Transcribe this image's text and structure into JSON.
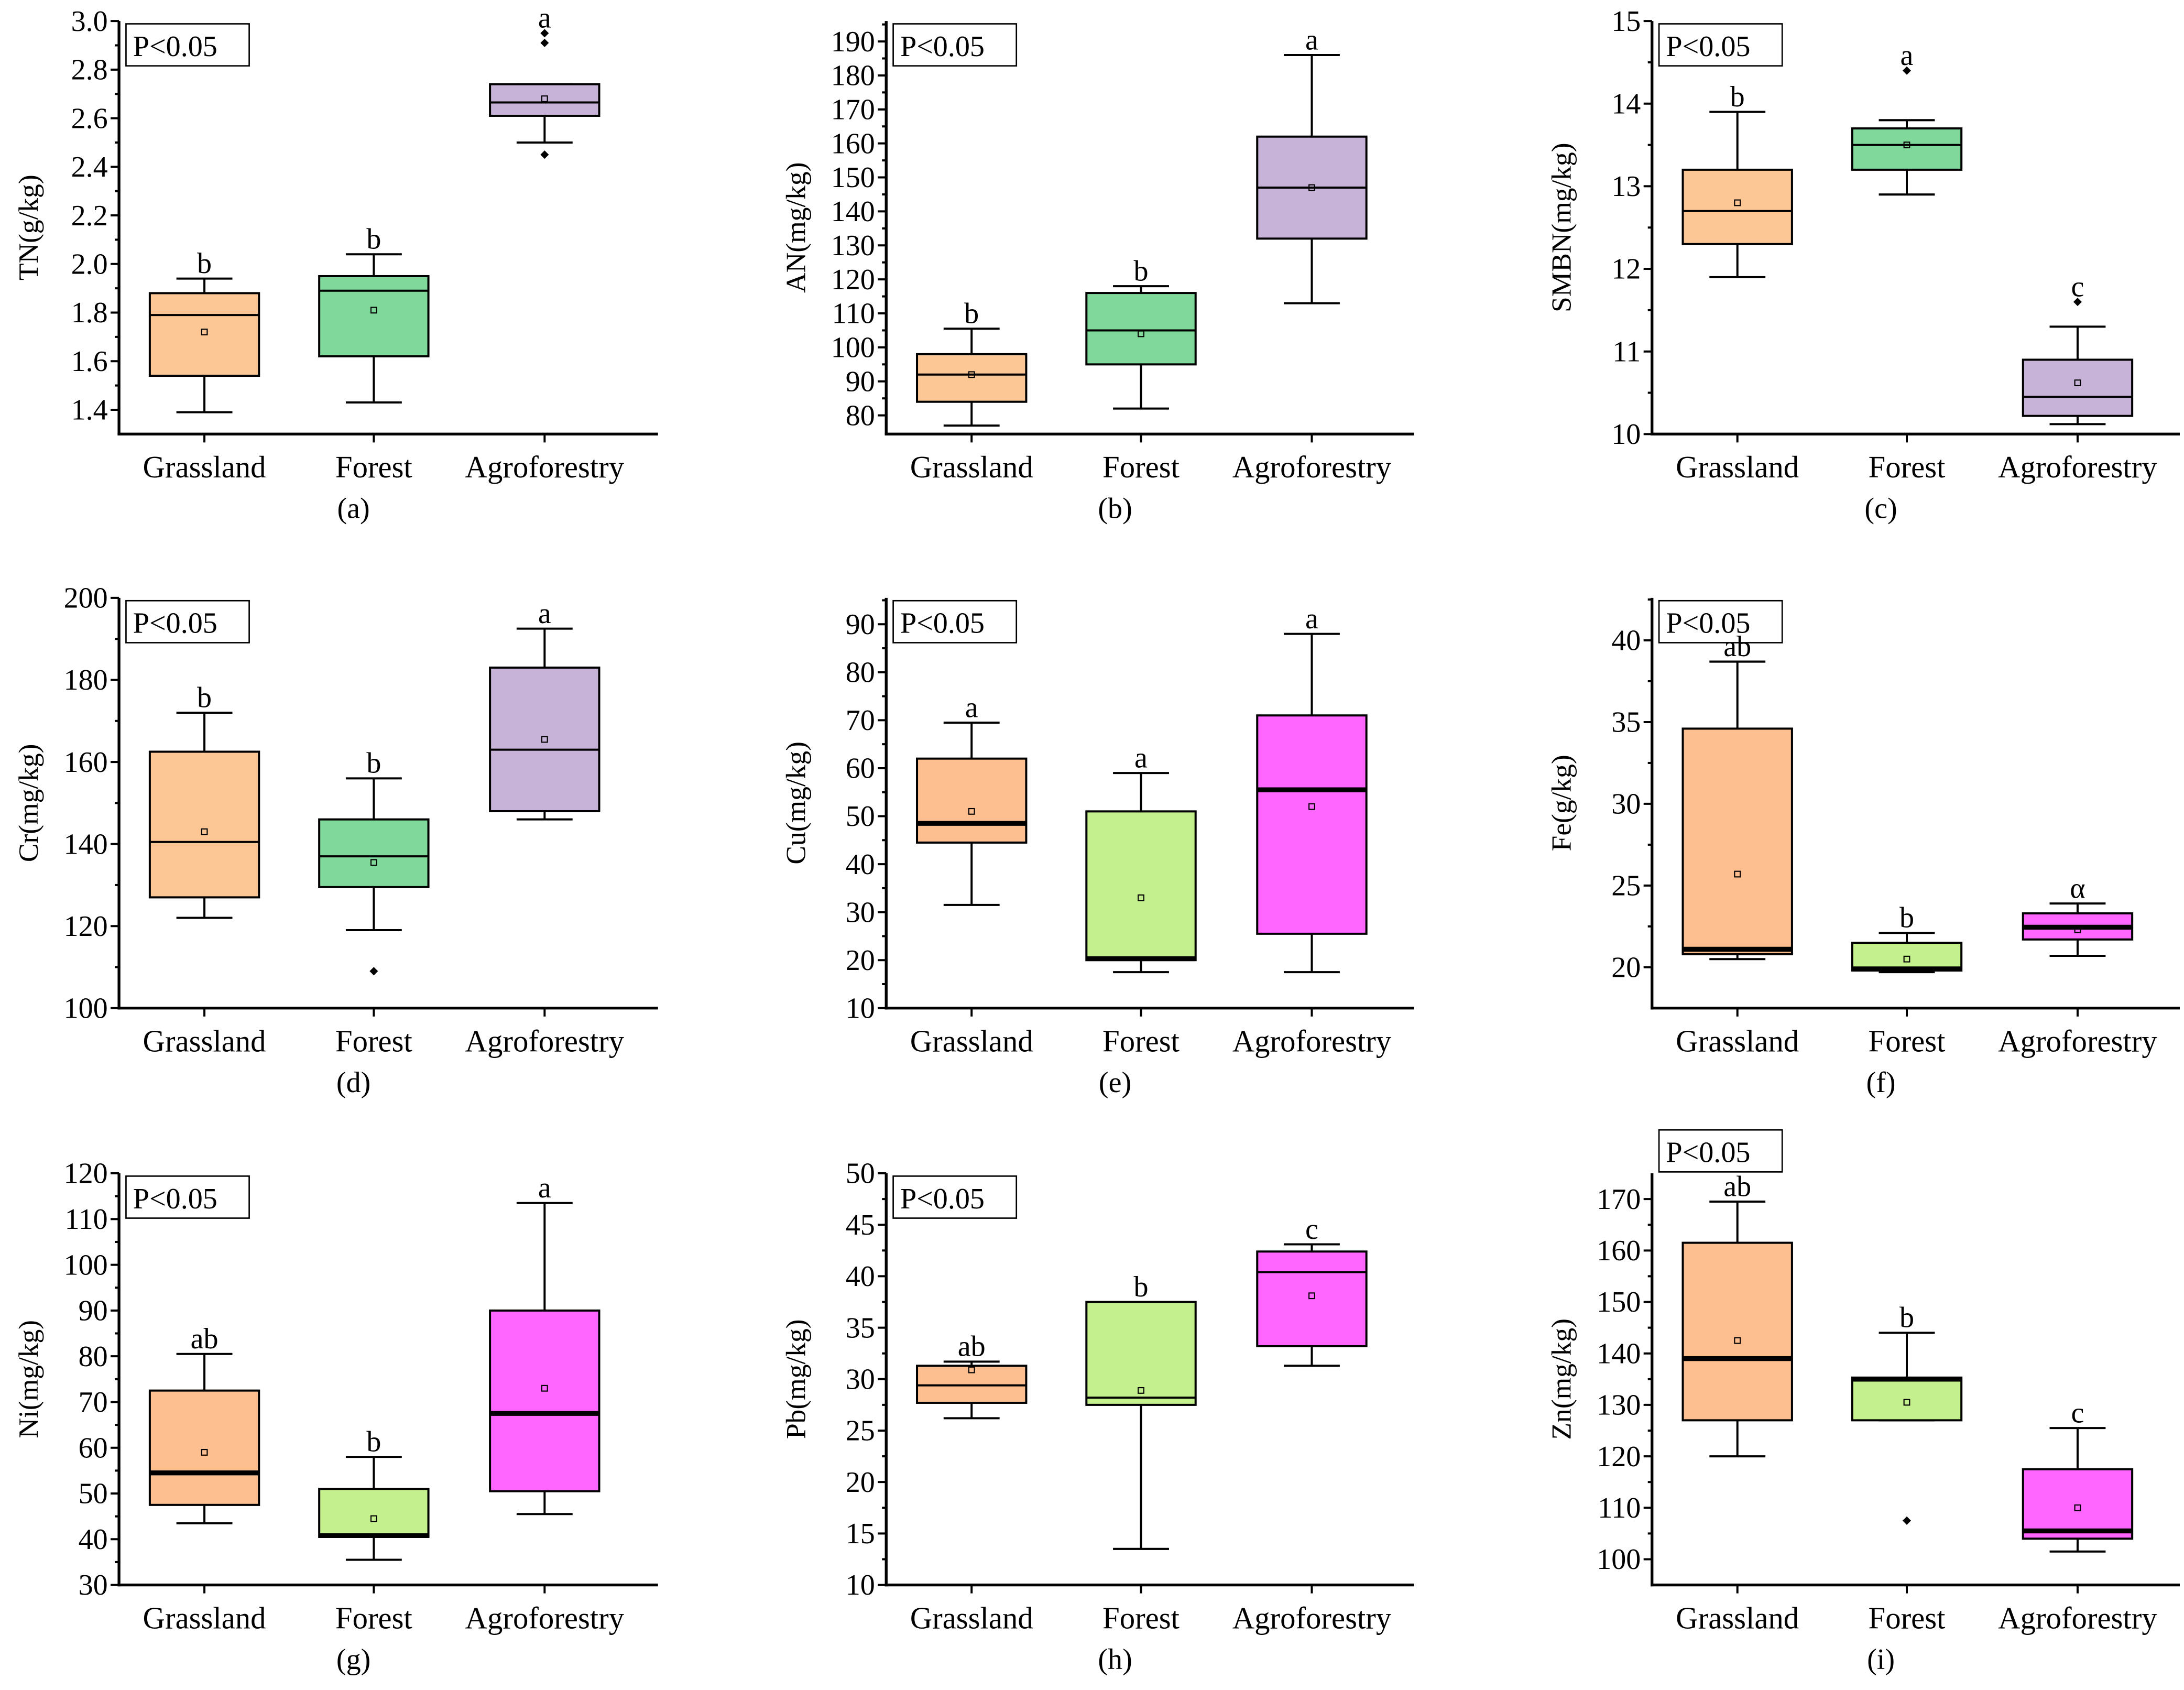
{
  "chart_data": [
    {
      "type": "box",
      "caption": "(a)",
      "ylabel": "TN(g/kg)",
      "p_label": "P<0.05",
      "ylim": [
        1.3,
        3.0
      ],
      "yticks": [
        "1.4",
        "1.6",
        "1.8",
        "2.0",
        "2.2",
        "2.4",
        "2.6",
        "2.8",
        "3.0"
      ],
      "categories": [
        "Grassland",
        "Forest",
        "Agroforestry"
      ],
      "boxes": [
        {
          "min": 1.39,
          "q1": 1.54,
          "median": 1.79,
          "q3": 1.88,
          "max": 1.94,
          "mean": 1.72,
          "outliers": [],
          "letter": "b",
          "color": "#fdc795"
        },
        {
          "min": 1.43,
          "q1": 1.62,
          "median": 1.89,
          "q3": 1.95,
          "max": 2.04,
          "mean": 1.81,
          "outliers": [],
          "letter": "b",
          "color": "#80d99a"
        },
        {
          "min": 2.5,
          "q1": 2.61,
          "median": 2.665,
          "q3": 2.74,
          "max": 2.74,
          "mean": 2.68,
          "outliers": [
            2.45,
            2.91,
            2.95
          ],
          "letter": "a",
          "color": "#c8b3d8"
        }
      ]
    },
    {
      "type": "box",
      "caption": "(b)",
      "ylabel": "AN(mg/kg)",
      "p_label": "P<0.05",
      "ylim": [
        74.5,
        196
      ],
      "yticks": [
        "80",
        "90",
        "100",
        "110",
        "120",
        "130",
        "140",
        "150",
        "160",
        "170",
        "180",
        "190"
      ],
      "categories": [
        "Grassland",
        "Forest",
        "Agroforestry"
      ],
      "boxes": [
        {
          "min": 77,
          "q1": 84,
          "median": 92,
          "q3": 98,
          "max": 105.5,
          "mean": 92,
          "outliers": [],
          "letter": "b",
          "color": "#fdc795"
        },
        {
          "min": 82,
          "q1": 95,
          "median": 105,
          "q3": 116,
          "max": 118,
          "mean": 104,
          "outliers": [],
          "letter": "b",
          "color": "#80d99a"
        },
        {
          "min": 113,
          "q1": 132,
          "median": 147,
          "q3": 162,
          "max": 186,
          "mean": 147,
          "outliers": [],
          "letter": "a",
          "color": "#c8b3d8"
        }
      ]
    },
    {
      "type": "box",
      "caption": "(c)",
      "ylabel": "SMBN(mg/kg)",
      "p_label": "P<0.05",
      "ylim": [
        10,
        15
      ],
      "yticks": [
        "10",
        "11",
        "12",
        "13",
        "14",
        "15"
      ],
      "categories": [
        "Grassland",
        "Forest",
        "Agroforestry"
      ],
      "boxes": [
        {
          "min": 11.9,
          "q1": 12.3,
          "median": 12.7,
          "q3": 13.2,
          "max": 13.9,
          "mean": 12.8,
          "outliers": [],
          "letter": "b",
          "color": "#fdc795"
        },
        {
          "min": 12.9,
          "q1": 13.2,
          "median": 13.5,
          "q3": 13.7,
          "max": 13.8,
          "mean": 13.5,
          "outliers": [
            14.4
          ],
          "letter": "a",
          "color": "#80d99a"
        },
        {
          "min": 10.12,
          "q1": 10.22,
          "median": 10.45,
          "q3": 10.9,
          "max": 11.3,
          "mean": 10.62,
          "outliers": [
            11.6
          ],
          "letter": "c",
          "color": "#c8b3d8"
        }
      ]
    },
    {
      "type": "box",
      "caption": "(d)",
      "ylabel": "Cr(mg/kg)",
      "p_label": "P<0.05",
      "ylim": [
        100,
        200
      ],
      "yticks": [
        "100",
        "120",
        "140",
        "160",
        "180",
        "200"
      ],
      "categories": [
        "Grassland",
        "Forest",
        "Agroforestry"
      ],
      "boxes": [
        {
          "min": 122,
          "q1": 127,
          "median": 140.5,
          "q3": 162.5,
          "max": 172,
          "mean": 143,
          "outliers": [],
          "letter": "b",
          "color": "#fdc795"
        },
        {
          "min": 119,
          "q1": 129.5,
          "median": 137,
          "q3": 146,
          "max": 156,
          "mean": 135.5,
          "outliers": [
            109
          ],
          "letter": "b",
          "color": "#80d99a"
        },
        {
          "min": 146,
          "q1": 148,
          "median": 163,
          "q3": 183,
          "max": 192.5,
          "mean": 165.5,
          "outliers": [],
          "letter": "a",
          "color": "#c8b3d8"
        }
      ]
    },
    {
      "type": "box",
      "caption": "(e)",
      "ylabel": "Cu(mg/kg)",
      "p_label": "P<0.05",
      "ylim": [
        10,
        95.5
      ],
      "yticks": [
        "10",
        "20",
        "30",
        "40",
        "50",
        "60",
        "70",
        "80",
        "90"
      ],
      "thick_median": true,
      "categories": [
        "Grassland",
        "Forest",
        "Agroforestry"
      ],
      "boxes": [
        {
          "min": 31.5,
          "q1": 44.5,
          "median": 48.5,
          "q3": 62,
          "max": 69.5,
          "mean": 51,
          "outliers": [],
          "letter": "a",
          "color": "#fdbf8f"
        },
        {
          "min": 17.5,
          "q1": 20,
          "median": 20.3,
          "q3": 51,
          "max": 59,
          "mean": 33,
          "outliers": [],
          "letter": "a",
          "color": "#c4f08e"
        },
        {
          "min": 17.5,
          "q1": 25.5,
          "median": 55.5,
          "q3": 71,
          "max": 88,
          "mean": 52,
          "outliers": [],
          "letter": "a",
          "color": "#ff66ff"
        }
      ]
    },
    {
      "type": "box",
      "caption": "(f)",
      "ylabel": "Fe(g/kg)",
      "p_label": "P<0.05",
      "ylim": [
        17.5,
        42.6
      ],
      "yticks": [
        "20",
        "25",
        "30",
        "35",
        "40"
      ],
      "thick_median": true,
      "categories": [
        "Grassland",
        "Forest",
        "Agroforestry"
      ],
      "boxes": [
        {
          "min": 20.5,
          "q1": 20.8,
          "median": 21.1,
          "q3": 34.6,
          "max": 38.7,
          "mean": 25.7,
          "outliers": [],
          "letter": "ab",
          "color": "#fdbf8f"
        },
        {
          "min": 19.7,
          "q1": 19.8,
          "median": 19.9,
          "q3": 21.5,
          "max": 22.1,
          "mean": 20.5,
          "outliers": [],
          "letter": "b",
          "color": "#c4f08e"
        },
        {
          "min": 20.7,
          "q1": 21.7,
          "median": 22.45,
          "q3": 23.3,
          "max": 23.9,
          "mean": 22.3,
          "outliers": [],
          "letter": "α",
          "color": "#ff66ff"
        }
      ]
    },
    {
      "type": "box",
      "caption": "(g)",
      "ylabel": "Ni(mg/kg)",
      "p_label": "P<0.05",
      "ylim": [
        30,
        120
      ],
      "yticks": [
        "30",
        "40",
        "50",
        "60",
        "70",
        "80",
        "90",
        "100",
        "110",
        "120"
      ],
      "thick_median": true,
      "categories": [
        "Grassland",
        "Forest",
        "Agroforestry"
      ],
      "boxes": [
        {
          "min": 43.5,
          "q1": 47.5,
          "median": 54.5,
          "q3": 72.5,
          "max": 80.5,
          "mean": 59,
          "outliers": [],
          "letter": "ab",
          "color": "#fdbf8f"
        },
        {
          "min": 35.5,
          "q1": 40.5,
          "median": 40.8,
          "q3": 51,
          "max": 58,
          "mean": 44.5,
          "outliers": [],
          "letter": "b",
          "color": "#c4f08e"
        },
        {
          "min": 45.5,
          "q1": 50.5,
          "median": 67.5,
          "q3": 90,
          "max": 113.5,
          "mean": 73,
          "outliers": [],
          "letter": "a",
          "color": "#ff66ff"
        }
      ]
    },
    {
      "type": "box",
      "caption": "(h)",
      "ylabel": "Pb(mg/kg)",
      "p_label": "P<0.05",
      "ylim": [
        10,
        50
      ],
      "yticks": [
        "10",
        "15",
        "20",
        "25",
        "30",
        "35",
        "40",
        "45",
        "50"
      ],
      "categories": [
        "Grassland",
        "Forest",
        "Agroforestry"
      ],
      "boxes": [
        {
          "min": 26.2,
          "q1": 27.7,
          "median": 29.4,
          "q3": 31.3,
          "max": 31.7,
          "mean": 30.9,
          "outliers": [],
          "letter": "ab",
          "color": "#fdbf8f"
        },
        {
          "min": 13.5,
          "q1": 27.5,
          "median": 28.2,
          "q3": 37.5,
          "max": 37.5,
          "mean": 28.9,
          "outliers": [],
          "letter": "b",
          "color": "#c4f08e"
        },
        {
          "min": 31.3,
          "q1": 33.2,
          "median": 40.4,
          "q3": 42.4,
          "max": 43.1,
          "mean": 38.1,
          "outliers": [],
          "letter": "c",
          "color": "#ff66ff"
        }
      ]
    },
    {
      "type": "box",
      "caption": "(i)",
      "ylabel": "Zn(mg/kg)",
      "p_label": "P<0.05",
      "ylim": [
        95,
        175
      ],
      "yticks": [
        "100",
        "110",
        "120",
        "130",
        "140",
        "150",
        "160",
        "170"
      ],
      "thick_median": true,
      "categories": [
        "Grassland",
        "Forest",
        "Agroforestry"
      ],
      "boxes": [
        {
          "min": 120,
          "q1": 127,
          "median": 139,
          "q3": 161.5,
          "max": 169.5,
          "mean": 142.5,
          "outliers": [],
          "letter": "ab",
          "color": "#fdbf8f"
        },
        {
          "min": 127,
          "q1": 127,
          "median": 135,
          "q3": 135.3,
          "max": 144,
          "mean": 130.5,
          "outliers": [
            107.5
          ],
          "letter": "b",
          "color": "#c4f08e"
        },
        {
          "min": 101.5,
          "q1": 104,
          "median": 105.5,
          "q3": 117.5,
          "max": 125.5,
          "mean": 110,
          "outliers": [],
          "letter": "c",
          "color": "#ff66ff"
        }
      ]
    }
  ]
}
